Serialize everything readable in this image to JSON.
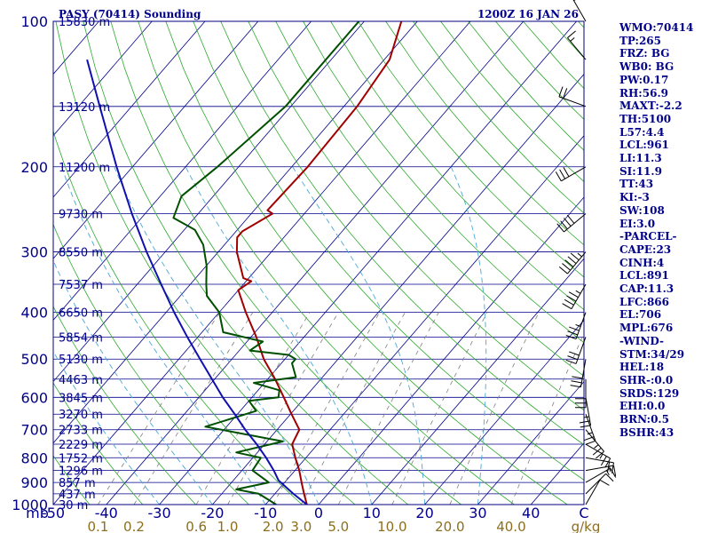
{
  "header": {
    "station": "PASY (70414) Sounding",
    "time": "1200Z 16 JAN 26"
  },
  "indices": [
    "WMO:70414",
    "TP:265",
    "FRZ: BG",
    "WB0: BG",
    "PW:0.17",
    "RH:56.9",
    "MAXT:-2.2",
    "TH:5100",
    "L57:4.4",
    "LCL:961",
    "LI:11.3",
    "SI:11.9",
    "TT:43",
    "KI:-3",
    "SW:108",
    "EI:3.0",
    "-PARCEL-",
    "CAPE:23",
    "CINH:4",
    "LCL:891",
    "CAP:11.3",
    "LFC:866",
    "EL:706",
    "MPL:676",
    "-WIND-",
    "STM:34/29",
    "HEL:18",
    "SHR-:0.0",
    "SRDS:129",
    "EHI:0.0",
    "BRN:0.5",
    "BSHR:43"
  ],
  "colors": {
    "frame": "#000080",
    "isotherm": "#00008b",
    "dry_adiabat": "#2eaa2e",
    "moist_adiabat": "#4aa8d8",
    "mixing_ratio": "#808080",
    "temperature": "#a00000",
    "dewpoint": "#005000",
    "parcel": "#1010b0",
    "wind_barb": "#000000",
    "mixing_ratio_label": "#8b6f1e"
  },
  "chart_data": {
    "type": "line",
    "subtype": "skew-T log-p sounding",
    "y_axis": {
      "unit": "mb",
      "scale": "log",
      "range": [
        1000,
        100
      ],
      "ticks": [
        100,
        200,
        300,
        400,
        500,
        600,
        700,
        800,
        900,
        1000
      ]
    },
    "x_axis": {
      "unit": "C",
      "skewed": true,
      "range": [
        -50,
        50
      ],
      "ticks": [
        -50,
        -40,
        -30,
        -20,
        -10,
        0,
        10,
        20,
        30,
        40
      ]
    },
    "x_axis_labels": [
      "mb",
      "-50",
      "-40",
      "-30",
      "-20",
      "-10",
      "0",
      "10",
      "20",
      "30",
      "40",
      "C"
    ],
    "mixing_ratio_labels": [
      "0.1",
      "0.2",
      "0.6",
      "1.0",
      "2.0",
      "3.0",
      "5.0",
      "10.0",
      "20.0",
      "40.0"
    ],
    "mixing_ratio_unit": "g/kg",
    "height_levels": [
      {
        "p": 100,
        "label": "15830 m"
      },
      {
        "p": 150,
        "label": "13120 m"
      },
      {
        "p": 200,
        "label": "11200 m"
      },
      {
        "p": 250,
        "label": "9730 m"
      },
      {
        "p": 300,
        "label": "8550 m"
      },
      {
        "p": 350,
        "label": "7537 m"
      },
      {
        "p": 400,
        "label": "6650 m"
      },
      {
        "p": 450,
        "label": "5854 m"
      },
      {
        "p": 500,
        "label": "5130 m"
      },
      {
        "p": 550,
        "label": "4463 m"
      },
      {
        "p": 600,
        "label": "3845 m"
      },
      {
        "p": 650,
        "label": "3270 m"
      },
      {
        "p": 700,
        "label": "2733 m"
      },
      {
        "p": 750,
        "label": "2229 m"
      },
      {
        "p": 800,
        "label": "1752 m"
      },
      {
        "p": 850,
        "label": "1296 m"
      },
      {
        "p": 900,
        "label": "857 m"
      },
      {
        "p": 950,
        "label": "437 m"
      },
      {
        "p": 1000,
        "label": "30 m"
      }
    ],
    "series": [
      {
        "id": "temperature",
        "points": [
          {
            "p": 1000,
            "t": -2.2
          },
          {
            "p": 950,
            "t": -4.5
          },
          {
            "p": 900,
            "t": -6.8
          },
          {
            "p": 850,
            "t": -9.2
          },
          {
            "p": 800,
            "t": -12.0
          },
          {
            "p": 750,
            "t": -14.8
          },
          {
            "p": 700,
            "t": -15.8
          },
          {
            "p": 650,
            "t": -19.8
          },
          {
            "p": 600,
            "t": -24.0
          },
          {
            "p": 550,
            "t": -28.6
          },
          {
            "p": 500,
            "t": -34.0
          },
          {
            "p": 450,
            "t": -39.0
          },
          {
            "p": 400,
            "t": -45.0
          },
          {
            "p": 360,
            "t": -50.0
          },
          {
            "p": 345,
            "t": -49.0
          },
          {
            "p": 340,
            "t": -51.0
          },
          {
            "p": 300,
            "t": -56.5
          },
          {
            "p": 280,
            "t": -58.8
          },
          {
            "p": 272,
            "t": -58.8
          },
          {
            "p": 250,
            "t": -56.0
          },
          {
            "p": 246,
            "t": -57.5
          },
          {
            "p": 200,
            "t": -57.0
          },
          {
            "p": 150,
            "t": -57.5
          },
          {
            "p": 120,
            "t": -59.0
          },
          {
            "p": 100,
            "t": -63.0
          }
        ]
      },
      {
        "id": "dewpoint",
        "points": [
          {
            "p": 1000,
            "t": -8.0
          },
          {
            "p": 950,
            "t": -13.0
          },
          {
            "p": 930,
            "t": -18.0
          },
          {
            "p": 900,
            "t": -13.0
          },
          {
            "p": 850,
            "t": -18.0
          },
          {
            "p": 800,
            "t": -18.5
          },
          {
            "p": 780,
            "t": -24.0
          },
          {
            "p": 740,
            "t": -17.0
          },
          {
            "p": 690,
            "t": -34.0
          },
          {
            "p": 640,
            "t": -27.0
          },
          {
            "p": 610,
            "t": -30.0
          },
          {
            "p": 600,
            "t": -25.0
          },
          {
            "p": 580,
            "t": -26.0
          },
          {
            "p": 560,
            "t": -32.0
          },
          {
            "p": 545,
            "t": -25.0
          },
          {
            "p": 510,
            "t": -28.0
          },
          {
            "p": 500,
            "t": -28.0
          },
          {
            "p": 490,
            "t": -30.0
          },
          {
            "p": 480,
            "t": -38.0
          },
          {
            "p": 460,
            "t": -37.0
          },
          {
            "p": 440,
            "t": -46.0
          },
          {
            "p": 400,
            "t": -50.0
          },
          {
            "p": 370,
            "t": -55.0
          },
          {
            "p": 350,
            "t": -57.0
          },
          {
            "p": 320,
            "t": -60.0
          },
          {
            "p": 290,
            "t": -64.0
          },
          {
            "p": 270,
            "t": -68.0
          },
          {
            "p": 255,
            "t": -74.0
          },
          {
            "p": 230,
            "t": -76.0
          },
          {
            "p": 200,
            "t": -74.0
          },
          {
            "p": 150,
            "t": -71.0
          },
          {
            "p": 100,
            "t": -71.0
          }
        ]
      },
      {
        "id": "parcel",
        "points": [
          {
            "p": 1000,
            "t": -2.2
          },
          {
            "p": 950,
            "t": -6.5
          },
          {
            "p": 891,
            "t": -11.5
          },
          {
            "p": 850,
            "t": -14.0
          },
          {
            "p": 800,
            "t": -17.5
          },
          {
            "p": 750,
            "t": -21.5
          },
          {
            "p": 700,
            "t": -26.0
          },
          {
            "p": 650,
            "t": -30.5
          },
          {
            "p": 600,
            "t": -35.5
          },
          {
            "p": 550,
            "t": -40.5
          },
          {
            "p": 500,
            "t": -46.0
          },
          {
            "p": 450,
            "t": -52.0
          },
          {
            "p": 400,
            "t": -58.5
          },
          {
            "p": 350,
            "t": -65.5
          },
          {
            "p": 300,
            "t": -73.5
          },
          {
            "p": 250,
            "t": -82.5
          },
          {
            "p": 200,
            "t": -93.0
          },
          {
            "p": 150,
            "t": -106.0
          },
          {
            "p": 120,
            "t": -116.0
          }
        ]
      }
    ],
    "wind": [
      {
        "p": 1000,
        "dir": 30,
        "spd": 10
      },
      {
        "p": 950,
        "dir": 45,
        "spd": 10
      },
      {
        "p": 900,
        "dir": 60,
        "spd": 15
      },
      {
        "p": 850,
        "dir": 80,
        "spd": 15
      },
      {
        "p": 800,
        "dir": 100,
        "spd": 20
      },
      {
        "p": 750,
        "dir": 120,
        "spd": 25
      },
      {
        "p": 700,
        "dir": 140,
        "spd": 25
      },
      {
        "p": 650,
        "dir": 160,
        "spd": 25
      },
      {
        "p": 600,
        "dir": 170,
        "spd": 25
      },
      {
        "p": 550,
        "dir": 180,
        "spd": 30
      },
      {
        "p": 500,
        "dir": 190,
        "spd": 30
      },
      {
        "p": 450,
        "dir": 200,
        "spd": 30
      },
      {
        "p": 400,
        "dir": 200,
        "spd": 35
      },
      {
        "p": 350,
        "dir": 210,
        "spd": 45
      },
      {
        "p": 300,
        "dir": 220,
        "spd": 55
      },
      {
        "p": 250,
        "dir": 230,
        "spd": 40
      },
      {
        "p": 200,
        "dir": 240,
        "spd": 30
      },
      {
        "p": 150,
        "dir": 290,
        "spd": 20
      },
      {
        "p": 120,
        "dir": 320,
        "spd": 15
      },
      {
        "p": 100,
        "dir": 330,
        "spd": 15
      }
    ],
    "grid": true
  }
}
